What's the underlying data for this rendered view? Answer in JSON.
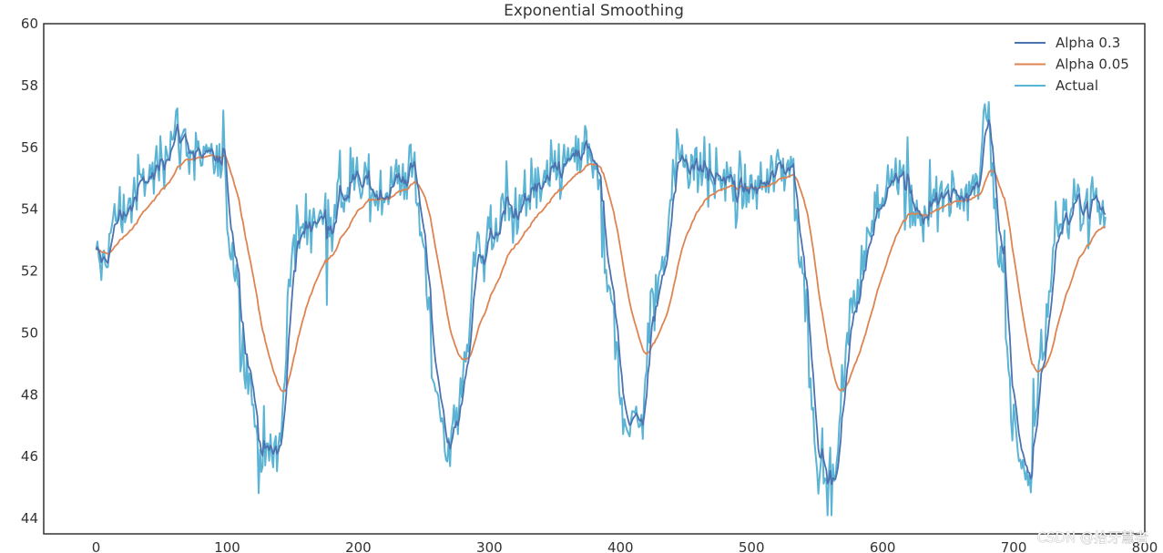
{
  "chart_data": {
    "type": "line",
    "title": "Exponential Smoothing",
    "xlabel": "",
    "ylabel": "",
    "xlim": [
      -40,
      800
    ],
    "ylim": [
      43.5,
      60
    ],
    "x_ticks": [
      0,
      100,
      200,
      300,
      400,
      500,
      600,
      700,
      800
    ],
    "y_ticks": [
      44,
      46,
      48,
      50,
      52,
      54,
      56,
      58,
      60
    ],
    "grid": false,
    "legend_position": "top-right",
    "trend_keypoints": {
      "x": [
        0,
        20,
        40,
        60,
        80,
        95,
        105,
        115,
        125,
        140,
        150,
        170,
        200,
        220,
        240,
        250,
        258,
        268,
        278,
        290,
        310,
        340,
        360,
        380,
        392,
        402,
        415,
        425,
        445,
        470,
        500,
        530,
        540,
        550,
        562,
        575,
        590,
        610,
        630,
        650,
        670,
        680,
        690,
        700,
        712,
        722,
        735,
        760,
        770
      ],
      "y": [
        52.0,
        54.0,
        55.0,
        56.5,
        55.6,
        55.3,
        52.5,
        48.8,
        46.2,
        46.3,
        53.0,
        53.8,
        54.8,
        54.6,
        55.3,
        53.0,
        48.0,
        46.3,
        48.0,
        52.5,
        53.8,
        54.6,
        55.6,
        55.7,
        51.0,
        47.5,
        47.0,
        51.0,
        55.8,
        55.0,
        54.6,
        55.5,
        51.5,
        46.0,
        45.0,
        50.5,
        53.3,
        55.5,
        53.8,
        54.3,
        54.6,
        57.3,
        52.0,
        47.0,
        45.0,
        49.8,
        53.8,
        54.5,
        53.8
      ]
    },
    "series": [
      {
        "name": "Alpha 0.3",
        "color": "#4c72b0",
        "alpha": 0.3
      },
      {
        "name": "Alpha 0.05",
        "color": "#dd8452",
        "alpha": 0.05
      },
      {
        "name": "Actual",
        "color": "#5bb4d4"
      }
    ]
  },
  "watermark": "CSDN @拾牙慧者"
}
